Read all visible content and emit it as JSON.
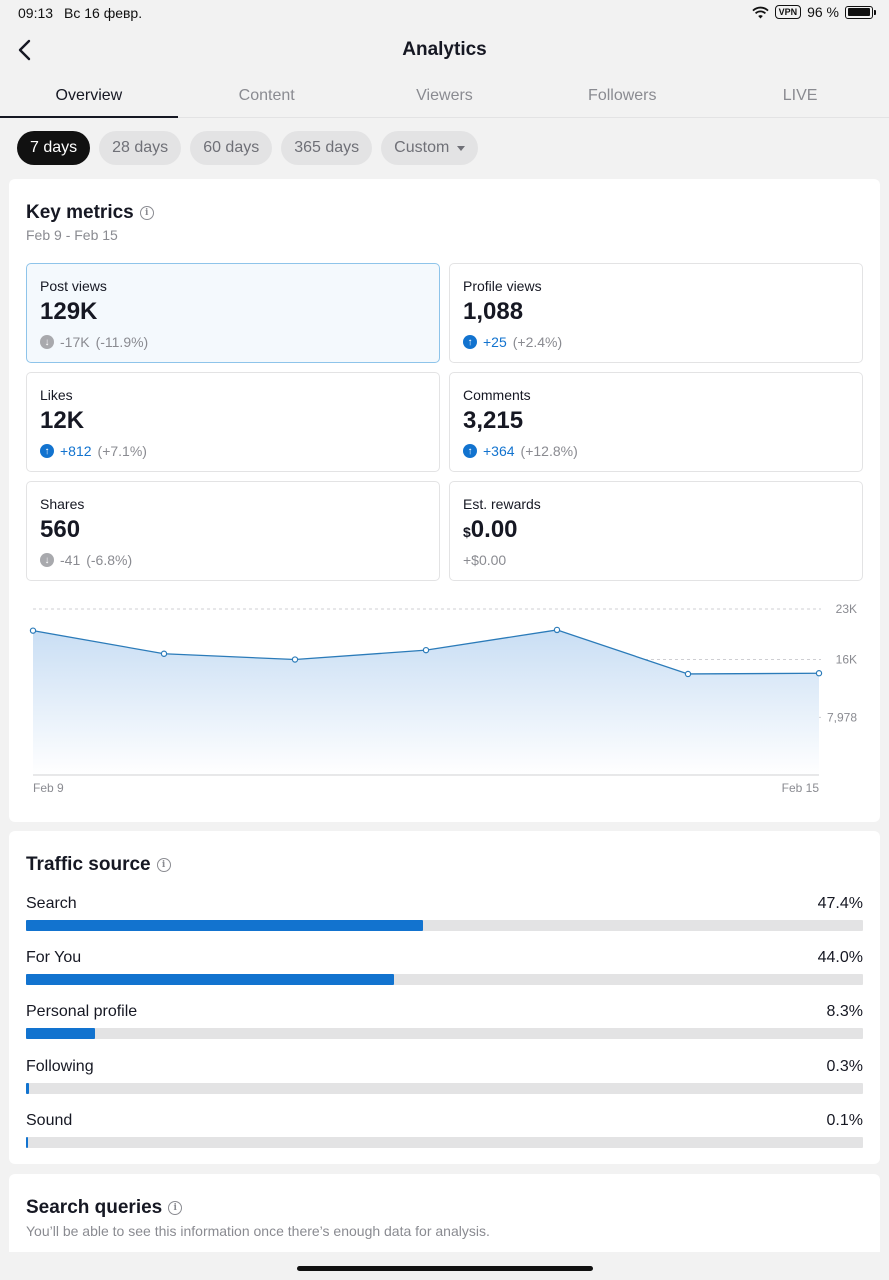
{
  "status_bar": {
    "time": "09:13",
    "date": "Вс 16 февр.",
    "vpn": "VPN",
    "battery": "96 %",
    "battery_level": 0.96
  },
  "header": {
    "title": "Analytics"
  },
  "tabs": [
    "Overview",
    "Content",
    "Viewers",
    "Followers",
    "LIVE"
  ],
  "periods": {
    "items": [
      "7 days",
      "28 days",
      "60 days",
      "365 days"
    ],
    "custom": "Custom"
  },
  "key_metrics": {
    "title": "Key metrics",
    "date_range": "Feb 9 - Feb 15",
    "metrics": [
      {
        "label": "Post views",
        "value": "129K",
        "change": "-17K",
        "pct": "(-11.9%)",
        "dir": "down"
      },
      {
        "label": "Profile views",
        "value": "1,088",
        "change": "+25",
        "pct": "(+2.4%)",
        "dir": "up"
      },
      {
        "label": "Likes",
        "value": "12K",
        "change": "+812",
        "pct": "(+7.1%)",
        "dir": "up"
      },
      {
        "label": "Comments",
        "value": "3,215",
        "change": "+364",
        "pct": "(+12.8%)",
        "dir": "up"
      },
      {
        "label": "Shares",
        "value": "560",
        "change": "-41",
        "pct": "(-6.8%)",
        "dir": "down"
      },
      {
        "label": "Est. rewards",
        "currency": "$",
        "value": "0.00",
        "change": "+$0.00",
        "pct": "",
        "dir": "none"
      }
    ]
  },
  "chart_data": {
    "type": "area",
    "x": [
      "Feb 9",
      "Feb 10",
      "Feb 11",
      "Feb 12",
      "Feb 13",
      "Feb 14",
      "Feb 15"
    ],
    "x_tick_labels": [
      "Feb 9",
      "Feb 15"
    ],
    "values": [
      20000,
      16800,
      16000,
      17300,
      20100,
      14000,
      14100
    ],
    "y_tick_labels": [
      "23K",
      "16K",
      "7,978"
    ],
    "y_ticks": [
      23000,
      16000,
      7978
    ],
    "ylim": [
      0,
      23000
    ],
    "colors": {
      "line": "#2b7bb9",
      "fill_top": "#c9def4",
      "fill_bottom": "#ffffff"
    }
  },
  "traffic_source": {
    "title": "Traffic source",
    "items": [
      {
        "label": "Search",
        "pct": "47.4%",
        "value": 47.4
      },
      {
        "label": "For You",
        "pct": "44.0%",
        "value": 44.0
      },
      {
        "label": "Personal profile",
        "pct": "8.3%",
        "value": 8.3
      },
      {
        "label": "Following",
        "pct": "0.3%",
        "value": 0.3
      },
      {
        "label": "Sound",
        "pct": "0.1%",
        "value": 0.1
      }
    ]
  },
  "search_queries": {
    "title": "Search queries",
    "message": "You’ll be able to see this information once there’s enough data for analysis."
  }
}
